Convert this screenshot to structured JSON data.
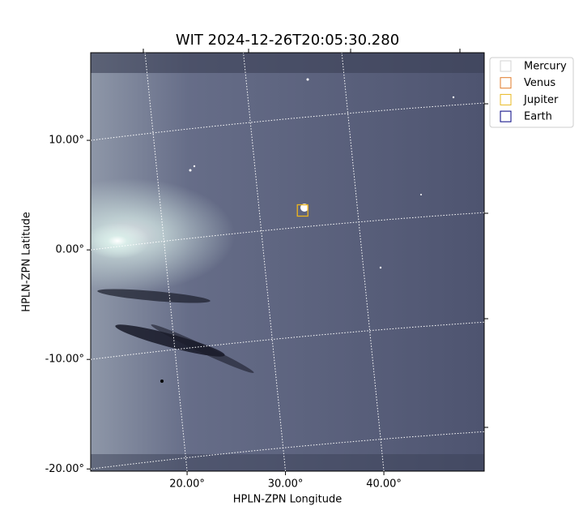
{
  "chart_data": {
    "type": "image",
    "title": "WIT 2024-12-26T20:05:30.280",
    "x_label": "HPLN-ZPN Longitude",
    "y_label": "HPLN-ZPN Latitude",
    "xlim": [
      10.2,
      50.2
    ],
    "ylim": [
      -20.2,
      18.0
    ],
    "xticks": [
      {
        "value": 20,
        "label": "20.00°"
      },
      {
        "value": 30,
        "label": "30.00°"
      },
      {
        "value": 40,
        "label": "40.00°"
      }
    ],
    "yticks": [
      {
        "value": 10,
        "label": "10.00°"
      },
      {
        "value": 0,
        "label": "0.00°"
      },
      {
        "value": -10,
        "label": "-10.00°"
      },
      {
        "value": -20,
        "label": "-20.00°"
      }
    ],
    "grid": true,
    "legend": "upper right",
    "series": [
      {
        "name": "Mercury",
        "color": "#d3d3d3"
      },
      {
        "name": "Venus",
        "color": "#e07b2a",
        "x": [
          31.7
        ],
        "y": [
          3.6
        ]
      },
      {
        "name": "Jupiter",
        "color": "#e8b820",
        "x": [
          31.7
        ],
        "y": [
          3.6
        ]
      },
      {
        "name": "Earth",
        "color": "#000080"
      }
    ]
  }
}
